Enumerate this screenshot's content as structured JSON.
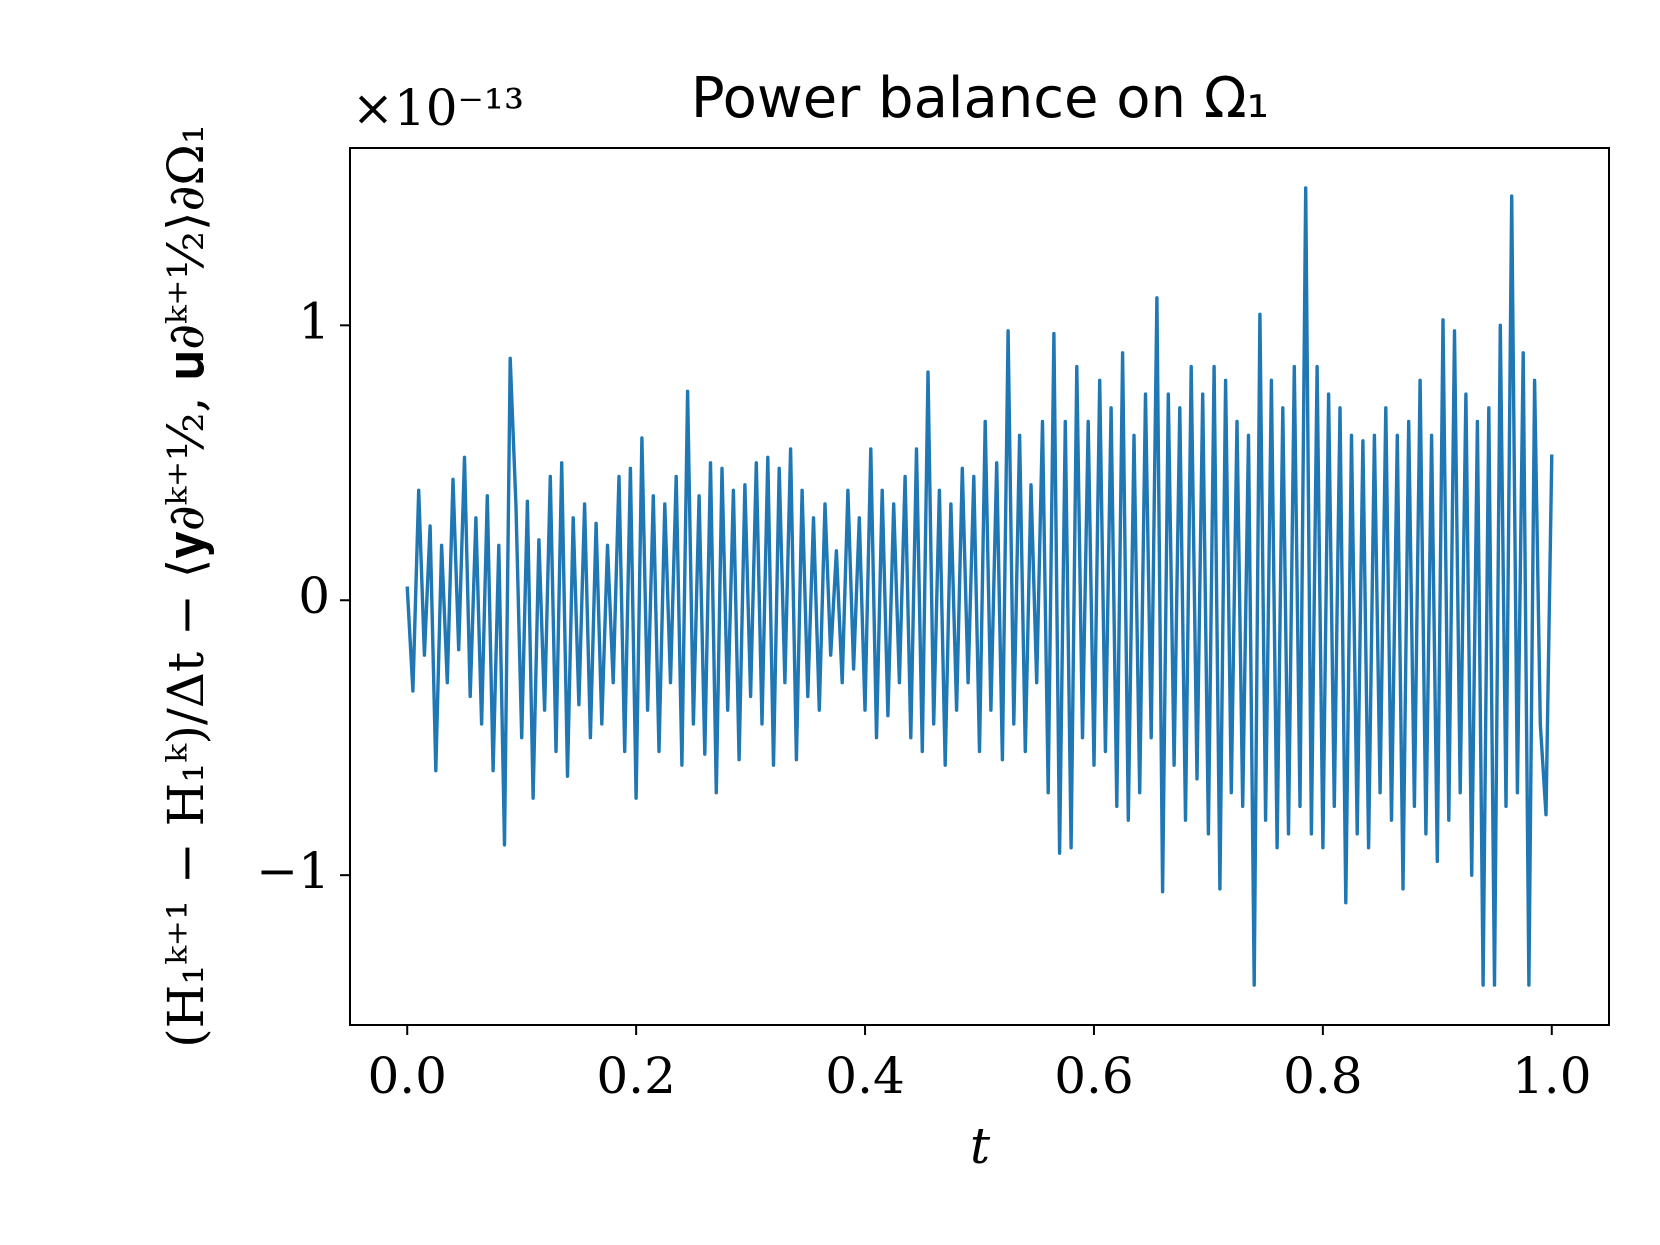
{
  "chart_data": {
    "type": "line",
    "title": "Power balance on Ω₁",
    "x_label": "t",
    "y_label": "(H₁ᵏ⁺¹ − H₁ᵏ)/Δt − ⟨𝐲∂ᵏ⁺½, 𝐮∂ᵏ⁺½⟩∂Ω₁",
    "y_offset_label": "×10⁻¹³",
    "x": [
      0,
      0.005,
      0.01,
      0.015,
      0.02,
      0.025,
      0.03,
      0.035,
      0.04,
      0.045,
      0.05,
      0.055,
      0.06,
      0.065,
      0.07,
      0.075,
      0.08,
      0.085,
      0.09,
      0.095,
      0.1,
      0.105,
      0.11,
      0.115,
      0.12,
      0.125,
      0.13,
      0.135,
      0.14,
      0.145,
      0.15,
      0.155,
      0.16,
      0.165,
      0.17,
      0.175,
      0.18,
      0.185,
      0.19,
      0.195,
      0.2,
      0.205,
      0.21,
      0.215,
      0.22,
      0.225,
      0.23,
      0.235,
      0.24,
      0.245,
      0.25,
      0.255,
      0.26,
      0.265,
      0.27,
      0.275,
      0.28,
      0.285,
      0.29,
      0.295,
      0.3,
      0.305,
      0.31,
      0.315,
      0.32,
      0.325,
      0.33,
      0.335,
      0.34,
      0.345,
      0.35,
      0.355,
      0.36,
      0.365,
      0.37,
      0.375,
      0.38,
      0.385,
      0.39,
      0.395,
      0.4,
      0.405,
      0.41,
      0.415,
      0.42,
      0.425,
      0.43,
      0.435,
      0.44,
      0.445,
      0.45,
      0.455,
      0.46,
      0.465,
      0.47,
      0.475,
      0.48,
      0.485,
      0.49,
      0.495,
      0.5,
      0.505,
      0.51,
      0.515,
      0.52,
      0.525,
      0.53,
      0.535,
      0.54,
      0.545,
      0.55,
      0.555,
      0.56,
      0.565,
      0.57,
      0.575,
      0.58,
      0.585,
      0.59,
      0.595,
      0.6,
      0.605,
      0.61,
      0.615,
      0.62,
      0.625,
      0.63,
      0.635,
      0.64,
      0.645,
      0.65,
      0.655,
      0.66,
      0.665,
      0.67,
      0.675,
      0.68,
      0.685,
      0.69,
      0.695,
      0.7,
      0.705,
      0.71,
      0.715,
      0.72,
      0.725,
      0.73,
      0.735,
      0.74,
      0.745,
      0.75,
      0.755,
      0.76,
      0.765,
      0.77,
      0.775,
      0.78,
      0.785,
      0.79,
      0.795,
      0.8,
      0.805,
      0.81,
      0.815,
      0.82,
      0.825,
      0.83,
      0.835,
      0.84,
      0.845,
      0.85,
      0.855,
      0.86,
      0.865,
      0.87,
      0.875,
      0.88,
      0.885,
      0.89,
      0.895,
      0.9,
      0.905,
      0.91,
      0.915,
      0.92,
      0.925,
      0.93,
      0.935,
      0.94,
      0.945,
      0.95,
      0.955,
      0.96,
      0.965,
      0.97,
      0.975,
      0.98,
      0.985,
      0.99,
      0.995,
      1
    ],
    "series": [
      {
        "color": "#1f77b4",
        "values": [
          0.05,
          -0.33,
          0.4,
          -0.2,
          0.27,
          -0.62,
          0.2,
          -0.3,
          0.44,
          -0.18,
          0.52,
          -0.35,
          0.3,
          -0.45,
          0.38,
          -0.62,
          0.2,
          -0.89,
          0.88,
          0.34,
          -0.5,
          0.36,
          -0.72,
          0.22,
          -0.4,
          0.45,
          -0.55,
          0.5,
          -0.64,
          0.3,
          -0.38,
          0.35,
          -0.5,
          0.28,
          -0.45,
          0.2,
          -0.3,
          0.45,
          -0.55,
          0.48,
          -0.72,
          0.59,
          -0.4,
          0.38,
          -0.55,
          0.35,
          -0.3,
          0.45,
          -0.6,
          0.76,
          -0.45,
          0.38,
          -0.56,
          0.5,
          -0.7,
          0.48,
          -0.4,
          0.4,
          -0.58,
          0.42,
          -0.35,
          0.5,
          -0.45,
          0.52,
          -0.6,
          0.48,
          -0.3,
          0.55,
          -0.58,
          0.4,
          -0.35,
          0.3,
          -0.4,
          0.35,
          -0.2,
          0.18,
          -0.3,
          0.4,
          -0.25,
          0.3,
          -0.4,
          0.55,
          -0.5,
          0.4,
          -0.42,
          0.35,
          -0.3,
          0.45,
          -0.5,
          0.55,
          -0.55,
          0.83,
          -0.45,
          0.4,
          -0.6,
          0.35,
          -0.4,
          0.48,
          -0.3,
          0.45,
          -0.55,
          0.65,
          -0.4,
          0.5,
          -0.58,
          0.98,
          -0.45,
          0.6,
          -0.55,
          0.42,
          -0.3,
          0.65,
          -0.7,
          0.97,
          -0.92,
          0.65,
          -0.9,
          0.85,
          -0.5,
          0.65,
          -0.6,
          0.8,
          -0.55,
          0.7,
          -0.75,
          0.9,
          -0.8,
          0.6,
          -0.7,
          0.75,
          -0.5,
          1.1,
          -1.06,
          0.75,
          -0.6,
          0.7,
          -0.8,
          0.85,
          -0.65,
          0.75,
          -0.85,
          0.85,
          -1.05,
          0.8,
          -0.7,
          0.65,
          -0.75,
          0.6,
          -1.4,
          1.04,
          -0.8,
          0.8,
          -0.9,
          0.7,
          -0.85,
          0.85,
          -0.75,
          1.5,
          -0.85,
          0.85,
          -0.9,
          0.75,
          -0.75,
          0.7,
          -1.1,
          0.6,
          -0.85,
          0.58,
          -0.9,
          0.6,
          -0.7,
          0.7,
          -0.8,
          0.6,
          -1.05,
          0.65,
          -0.75,
          0.8,
          -0.85,
          0.6,
          -0.95,
          1.02,
          -0.8,
          0.98,
          -0.7,
          0.75,
          -1.0,
          0.65,
          -1.4,
          0.7,
          -1.4,
          1.0,
          -0.75,
          1.47,
          -0.7,
          0.9,
          -1.4,
          0.8,
          -0.45,
          -0.78,
          0.53
        ]
      }
    ],
    "xlim": [
      -0.05,
      1.05
    ],
    "ylim": [
      -1.545,
      1.645
    ],
    "xticks": [
      {
        "value": 0,
        "label": "0.0"
      },
      {
        "value": 0.2,
        "label": "0.2"
      },
      {
        "value": 0.4,
        "label": "0.4"
      },
      {
        "value": 0.6,
        "label": "0.6"
      },
      {
        "value": 0.8,
        "label": "0.8"
      },
      {
        "value": 1,
        "label": "1.0"
      }
    ],
    "yticks": [
      {
        "value": -1,
        "label": "−1"
      },
      0,
      1
    ],
    "grid": false
  }
}
